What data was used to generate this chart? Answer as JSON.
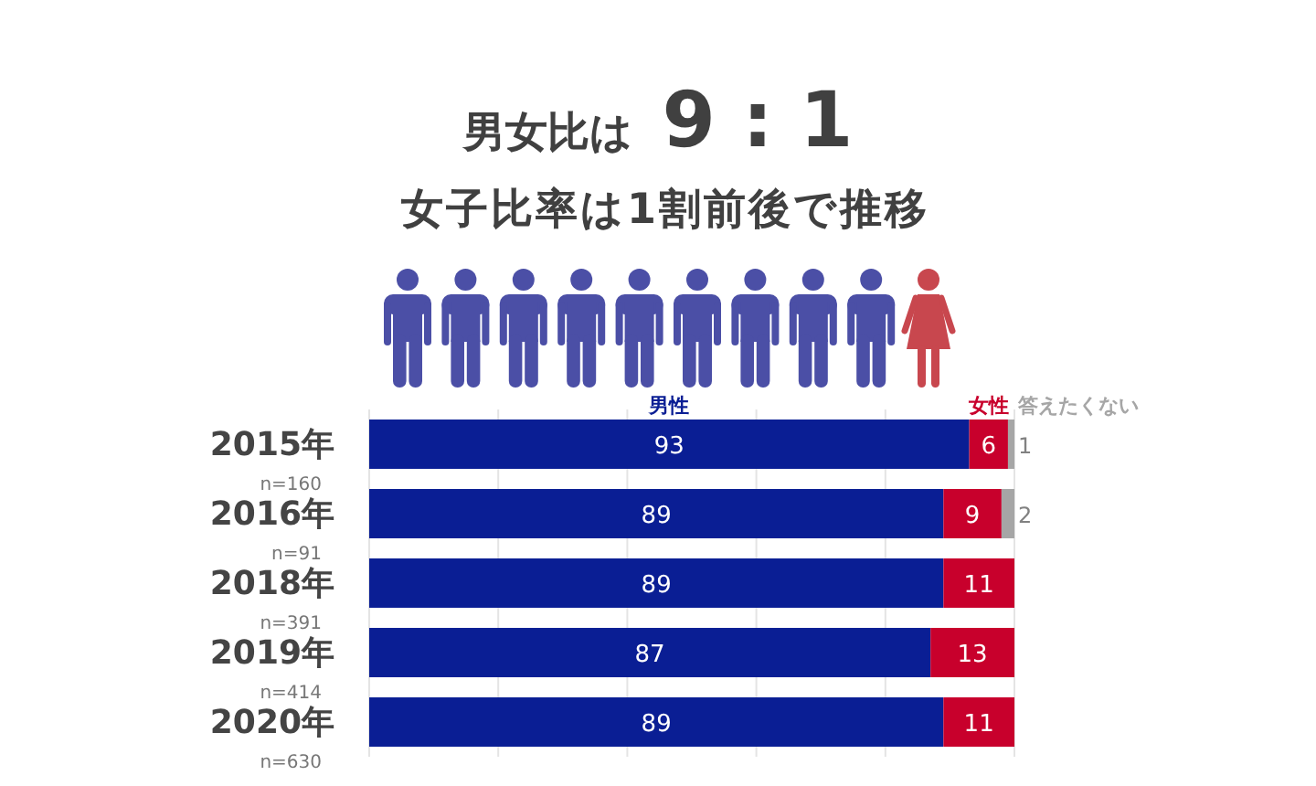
{
  "chart_data": {
    "type": "bar",
    "orientation": "horizontal",
    "stacked": true,
    "title": "男女比は 9 : 1",
    "subtitle": "女子比率は1割前後で推移",
    "categories": [
      "2015年\nn=160",
      "2016年\nn=91",
      "2018年\nn=391",
      "2019年\nn=414",
      "2020年\nn=630"
    ],
    "series": [
      {
        "name": "男性",
        "color": "#0a1e94",
        "values": [
          93,
          89,
          89,
          87,
          89
        ]
      },
      {
        "name": "女性",
        "color": "#c8002c",
        "values": [
          6,
          9,
          11,
          13,
          11
        ]
      },
      {
        "name": "答えたくない",
        "color": "#a6a6a6",
        "values": [
          1,
          2,
          null,
          null,
          null
        ]
      }
    ],
    "xlim": [
      0,
      100
    ],
    "xticks": [
      {
        "value": 0,
        "label": null
      },
      {
        "value": 20,
        "label": null
      },
      {
        "value": 40,
        "label": null
      },
      {
        "value": 60,
        "label": null
      },
      {
        "value": 80,
        "label": null
      },
      {
        "value": 100,
        "label": null
      }
    ],
    "grid": "x",
    "tick_labels": "y",
    "data_labels": true
  }
}
